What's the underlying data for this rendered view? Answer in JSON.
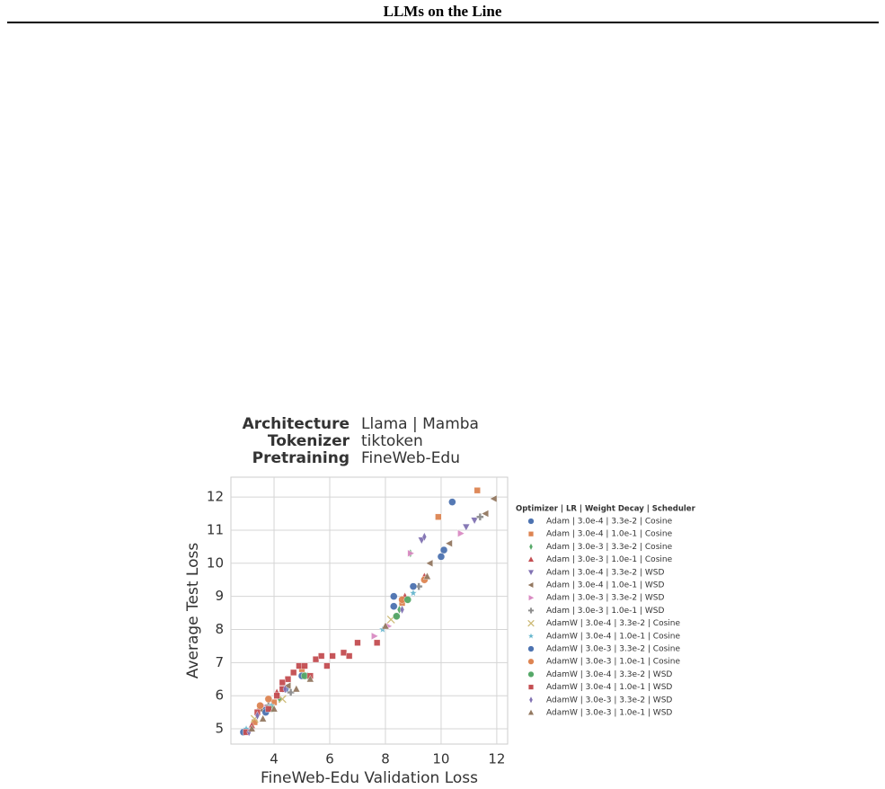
{
  "header": {
    "title": "LLMs on the Line"
  },
  "chart_data": {
    "type": "scatter",
    "annotations": [
      {
        "label": "Architecture",
        "text": "Llama  |  Mamba"
      },
      {
        "label": "Tokenizer",
        "text": "tiktoken"
      },
      {
        "label": "Pretraining",
        "text": "FineWeb-Edu"
      }
    ],
    "x_label": "FineWeb-Edu Validation Loss",
    "y_label": "Average Test Loss",
    "xlim": [
      2.45,
      12.39
    ],
    "xticks": [
      4,
      6,
      8,
      10,
      12
    ],
    "ylim": [
      4.54,
      12.6
    ],
    "yticks": [
      5,
      6,
      7,
      8,
      9,
      10,
      11,
      12
    ],
    "grid": true,
    "legend": "right",
    "legend_title": "Optimizer  |  LR  |  Weight Decay  |  Scheduler",
    "series": [
      {
        "name": "Adam  |  3.0e-4  |  3.3e-2  |  Cosine",
        "color": "#4c72b0",
        "marker": "circle",
        "x": [
          2.9,
          3.6,
          4.4,
          8.3,
          10.1,
          10.4
        ],
        "values": [
          4.9,
          5.6,
          6.2,
          9.0,
          10.4,
          11.85
        ]
      },
      {
        "name": "Adam  |  3.0e-4  |  1.0e-1  |  Cosine",
        "color": "#dd8452",
        "marker": "square",
        "x": [
          3.3,
          4.0,
          5.0,
          8.6,
          9.9,
          11.3
        ],
        "values": [
          5.2,
          5.8,
          6.8,
          8.8,
          11.4,
          12.2
        ]
      },
      {
        "name": "Adam  |  3.0e-3  |  3.3e-2  |  Cosine",
        "color": "#55a868",
        "marker": "thin-diamond",
        "x": [
          3.4,
          4.2,
          5.2,
          8.9,
          8.5
        ],
        "values": [
          5.4,
          5.9,
          6.6,
          10.3,
          8.6
        ]
      },
      {
        "name": "Adam  |  3.0e-3  |  1.0e-1  |  Cosine",
        "color": "#c44e52",
        "marker": "triangle-up",
        "x": [
          3.2,
          4.1,
          8.7,
          9.4
        ],
        "values": [
          5.1,
          6.1,
          9.0,
          9.6
        ]
      },
      {
        "name": "Adam  |  3.0e-4  |  3.3e-2  |  WSD",
        "color": "#8172b3",
        "marker": "triangle-down",
        "x": [
          3.1,
          4.3,
          9.3,
          10.9,
          11.2
        ],
        "values": [
          4.9,
          6.2,
          10.7,
          11.1,
          11.3
        ]
      },
      {
        "name": "Adam  |  3.0e-4  |  1.0e-1  |  WSD",
        "color": "#937860",
        "marker": "triangle-left",
        "x": [
          3.5,
          4.5,
          9.6,
          10.3,
          11.6,
          11.9
        ],
        "values": [
          5.6,
          6.3,
          10.0,
          10.6,
          11.5,
          11.95
        ]
      },
      {
        "name": "Adam  |  3.0e-3  |  3.3e-2  |  WSD",
        "color": "#da8bc3",
        "marker": "triangle-right",
        "x": [
          3.6,
          7.6,
          8.1,
          8.9,
          10.7
        ],
        "values": [
          5.7,
          7.8,
          8.1,
          10.3,
          10.9
        ]
      },
      {
        "name": "Adam  |  3.0e-3  |  1.0e-1  |  WSD",
        "color": "#8c8c8c",
        "marker": "plus",
        "x": [
          3.8,
          4.6,
          8.4,
          9.2,
          11.4
        ],
        "values": [
          5.7,
          6.1,
          8.4,
          9.3,
          11.4
        ]
      },
      {
        "name": "AdamW  |  3.0e-4  |  3.3e-2  |  Cosine",
        "color": "#ccb974",
        "marker": "x",
        "x": [
          3.3,
          4.3,
          8.2,
          8.7
        ],
        "values": [
          5.3,
          5.9,
          8.3,
          8.9
        ]
      },
      {
        "name": "AdamW  |  3.0e-4  |  1.0e-1  |  Cosine",
        "color": "#64b5cd",
        "marker": "star",
        "x": [
          3.0,
          3.9,
          7.9,
          9.0
        ],
        "values": [
          5.0,
          5.7,
          8.0,
          9.1
        ]
      },
      {
        "name": "AdamW  |  3.0e-3  |  3.3e-2  |  Cosine",
        "color": "#4c72b0",
        "marker": "circle",
        "x": [
          3.7,
          5.0,
          8.3,
          9.0,
          10.0
        ],
        "values": [
          5.5,
          6.6,
          8.7,
          9.3,
          10.2
        ]
      },
      {
        "name": "AdamW  |  3.0e-3  |  1.0e-1  |  Cosine",
        "color": "#dd8452",
        "marker": "circle",
        "x": [
          3.5,
          3.8,
          8.6,
          9.4
        ],
        "values": [
          5.7,
          5.9,
          8.9,
          9.5
        ]
      },
      {
        "name": "AdamW  |  3.0e-4  |  3.3e-2  |  WSD",
        "color": "#55a868",
        "marker": "circle",
        "x": [
          3.9,
          5.1,
          8.4,
          8.8
        ],
        "values": [
          5.6,
          6.6,
          8.4,
          8.9
        ]
      },
      {
        "name": "AdamW  |  3.0e-4  |  1.0e-1  |  WSD",
        "color": "#c44e52",
        "marker": "square",
        "x": [
          3.0,
          3.4,
          3.8,
          4.1,
          4.3,
          4.5,
          4.7,
          4.9,
          5.1,
          5.5,
          5.7,
          6.1,
          6.5,
          6.7,
          7.0,
          7.7,
          5.9,
          4.3,
          5.3
        ],
        "values": [
          4.9,
          5.5,
          5.6,
          6.0,
          6.2,
          6.5,
          6.7,
          6.9,
          6.9,
          7.1,
          7.2,
          7.2,
          7.3,
          7.2,
          7.6,
          7.6,
          6.9,
          6.4,
          6.6
        ]
      },
      {
        "name": "AdamW  |  3.0e-3  |  3.3e-2  |  WSD",
        "color": "#8172b3",
        "marker": "thin-diamond",
        "x": [
          3.1,
          3.4,
          4.4,
          9.4,
          8.6
        ],
        "values": [
          4.9,
          5.4,
          6.2,
          10.8,
          8.6
        ]
      },
      {
        "name": "AdamW  |  3.0e-3  |  1.0e-1  |  WSD",
        "color": "#937860",
        "marker": "triangle-up",
        "x": [
          3.2,
          3.6,
          4.0,
          4.8,
          5.3,
          8.0,
          9.5
        ],
        "values": [
          5.0,
          5.3,
          5.6,
          6.2,
          6.5,
          8.1,
          9.6
        ]
      }
    ]
  }
}
